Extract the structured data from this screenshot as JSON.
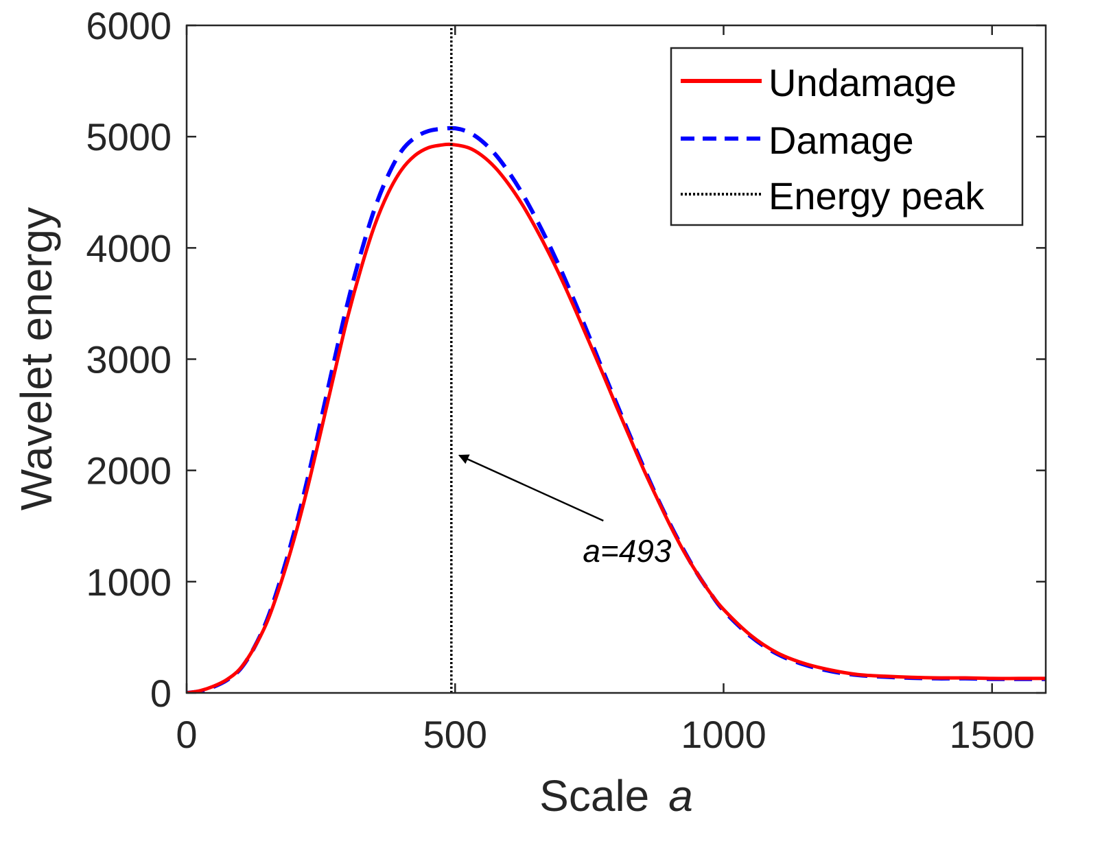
{
  "chart_data": {
    "type": "line",
    "title": "",
    "xlabel": "Scale",
    "xlabel_var": "a",
    "ylabel": "Wavelet energy",
    "xlim": [
      0,
      1600
    ],
    "ylim": [
      0,
      6000
    ],
    "xticks": [
      0,
      500,
      1000,
      1500
    ],
    "yticks": [
      0,
      1000,
      2000,
      3000,
      4000,
      5000,
      6000
    ],
    "grid": false,
    "legend_position": "top-right",
    "series": [
      {
        "name": "Undamage",
        "color": "#ff0000",
        "style": "solid",
        "x": [
          0,
          25,
          50,
          75,
          100,
          125,
          150,
          175,
          200,
          225,
          250,
          275,
          300,
          325,
          350,
          375,
          400,
          425,
          450,
          475,
          493,
          525,
          550,
          575,
          600,
          625,
          650,
          675,
          700,
          725,
          750,
          775,
          800,
          825,
          850,
          875,
          900,
          925,
          950,
          975,
          1000,
          1050,
          1100,
          1150,
          1200,
          1250,
          1300,
          1350,
          1400,
          1450,
          1500,
          1550,
          1600
        ],
        "values": [
          0,
          20,
          60,
          120,
          220,
          400,
          640,
          980,
          1380,
          1840,
          2350,
          2870,
          3380,
          3820,
          4200,
          4490,
          4700,
          4830,
          4900,
          4925,
          4930,
          4900,
          4830,
          4720,
          4570,
          4390,
          4180,
          3950,
          3700,
          3430,
          3150,
          2870,
          2580,
          2300,
          2020,
          1760,
          1510,
          1280,
          1080,
          900,
          750,
          520,
          360,
          265,
          205,
          165,
          150,
          140,
          135,
          135,
          130,
          130,
          130
        ]
      },
      {
        "name": "Damage",
        "color": "#0000ff",
        "style": "dashed",
        "x": [
          0,
          25,
          50,
          75,
          100,
          125,
          150,
          175,
          200,
          225,
          250,
          275,
          300,
          325,
          350,
          375,
          400,
          425,
          450,
          475,
          500,
          525,
          550,
          575,
          600,
          625,
          650,
          675,
          700,
          725,
          750,
          775,
          800,
          825,
          850,
          875,
          900,
          925,
          950,
          975,
          1000,
          1050,
          1100,
          1150,
          1200,
          1250,
          1300,
          1350,
          1400,
          1450,
          1500,
          1550,
          1600
        ],
        "values": [
          0,
          15,
          55,
          115,
          215,
          400,
          660,
          1020,
          1440,
          1920,
          2450,
          2990,
          3510,
          3960,
          4350,
          4650,
          4870,
          4990,
          5050,
          5070,
          5075,
          5040,
          4960,
          4840,
          4680,
          4490,
          4270,
          4030,
          3770,
          3490,
          3200,
          2900,
          2610,
          2320,
          2040,
          1770,
          1520,
          1290,
          1080,
          900,
          740,
          510,
          350,
          255,
          195,
          160,
          145,
          135,
          130,
          130,
          125,
          125,
          125
        ]
      },
      {
        "name": "Energy peak",
        "color": "#000000",
        "style": "dotted",
        "x": [
          493,
          493
        ],
        "values": [
          0,
          6000
        ]
      }
    ],
    "annotations": [
      {
        "text_var": "a",
        "text_rest": "=493",
        "point_to": [
          500,
          2160
        ],
        "text_at": [
          725,
          1270
        ]
      }
    ]
  }
}
